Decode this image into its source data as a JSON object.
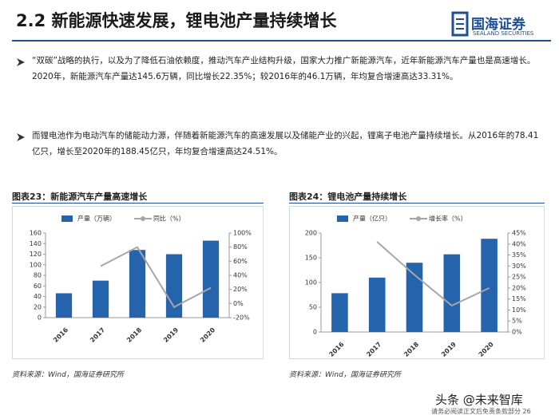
{
  "header": {
    "title": "2.2 新能源快速发展，锂电池产量持续增长",
    "logo": "国海证券",
    "logo_en": "SEALAND SECURITIES"
  },
  "bullets": [
    "“双碳”战略的执行，以及为了降低石油依赖度，推动汽车产业结构升级，国家大力推广新能源汽车，近年新能源汽车产量也是高速增长。2020年，新能源汽车产量达145.6万辆，同比增长22.35%；较2016年的46.1万辆，年均复合增速高达33.31%。",
    "而锂电池作为电动汽车的储能动力源，伴随着新能源汽车的高速发展以及储能产业的兴起，锂离子电池产量持续增长。从2016年的78.41亿只，增长至2020年的188.45亿只，年均复合增速高达24.51%。"
  ],
  "chart_data": [
    {
      "type": "bar",
      "title": "图表23：新能源汽车产量高速增长",
      "source": "资料来源：Wind，国海证券研究所",
      "categories": [
        "2016",
        "2017",
        "2018",
        "2019",
        "2020"
      ],
      "series": [
        {
          "name": "产量（万辆）",
          "color": "#2563ad",
          "values": [
            46.1,
            70,
            128,
            120,
            145.6
          ]
        },
        {
          "name": "同比（%）",
          "color": "#a6a6a6",
          "type": "line",
          "axis": "y2",
          "values": [
            null,
            53,
            80,
            -5,
            22.35
          ]
        }
      ],
      "ylim": [
        0,
        160
      ],
      "yticks": [
        0,
        20,
        40,
        60,
        80,
        100,
        120,
        140,
        160
      ],
      "y2lim": [
        -20,
        100
      ],
      "y2ticks": [
        {
          "value": -20,
          "label": "-20%"
        },
        {
          "value": 0,
          "label": "0%"
        },
        {
          "value": 20,
          "label": "20%"
        },
        {
          "value": 40,
          "label": "40%"
        },
        {
          "value": 60,
          "label": "60%"
        },
        {
          "value": 80,
          "label": "80%"
        },
        {
          "value": 100,
          "label": "100%"
        }
      ]
    },
    {
      "type": "bar",
      "title": "图表24：锂电池产量持续增长",
      "source": "资料来源：Wind，国海证券研究所",
      "categories": [
        "2016",
        "2017",
        "2018",
        "2019",
        "2020"
      ],
      "series": [
        {
          "name": "产量（亿只）",
          "color": "#2563ad",
          "values": [
            78.41,
            110,
            140,
            157,
            188.45
          ]
        },
        {
          "name": "增长率（%）",
          "color": "#a6a6a6",
          "type": "line",
          "axis": "y2",
          "values": [
            null,
            41,
            26,
            12,
            20
          ]
        }
      ],
      "ylim": [
        0,
        200
      ],
      "yticks": [
        0,
        50,
        100,
        150,
        200
      ],
      "y2lim": [
        0,
        45
      ],
      "y2ticks": [
        {
          "value": 0,
          "label": "0%"
        },
        {
          "value": 5,
          "label": "5%"
        },
        {
          "value": 10,
          "label": "10%"
        },
        {
          "value": 15,
          "label": "15%"
        },
        {
          "value": 20,
          "label": "20%"
        },
        {
          "value": 25,
          "label": "25%"
        },
        {
          "value": 30,
          "label": "30%"
        },
        {
          "value": 35,
          "label": "35%"
        },
        {
          "value": 40,
          "label": "40%"
        },
        {
          "value": 45,
          "label": "45%"
        }
      ]
    }
  ],
  "footer": {
    "watermark": "头条 @未来智库",
    "disclaimer": "请务必阅读正文后免责条款部分 26"
  }
}
